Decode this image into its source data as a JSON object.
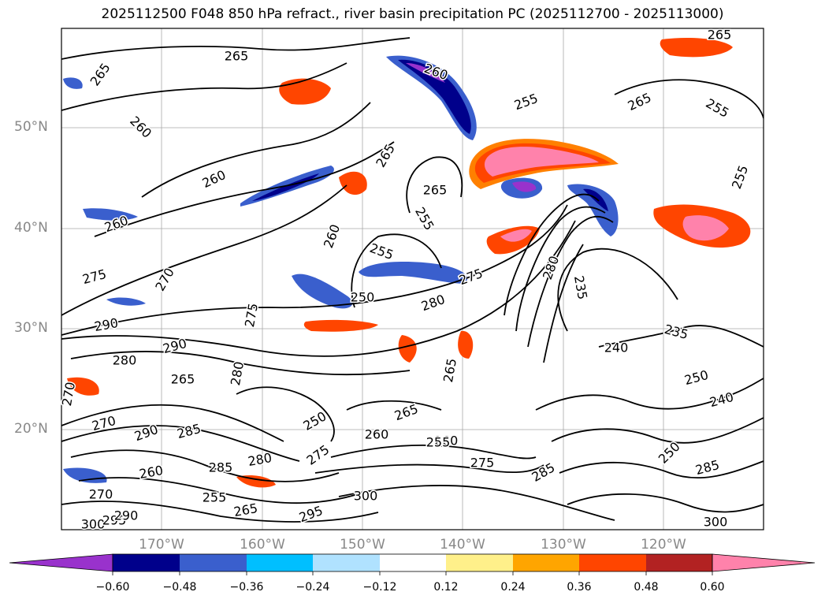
{
  "title": "2025112500 F048 850 hPa refract., river basin precipitation PC (2025112700 - 2025113000)",
  "lat_labels": [
    "50°N",
    "40°N",
    "30°N",
    "20°N"
  ],
  "lon_labels": [
    "170°W",
    "160°W",
    "150°W",
    "140°W",
    "130°W",
    "120°W"
  ],
  "contour_labels": [
    "265",
    "265",
    "265",
    "260",
    "255",
    "265",
    "260",
    "265",
    "255",
    "255",
    "260",
    "260",
    "260",
    "255",
    "255",
    "275",
    "270",
    "275",
    "250",
    "280",
    "275",
    "290",
    "280",
    "235",
    "240",
    "235",
    "250",
    "240",
    "265",
    "265",
    "285",
    "275",
    "280",
    "260",
    "260",
    "290",
    "285",
    "290",
    "280",
    "285",
    "275",
    "260",
    "265",
    "255",
    "265",
    "270",
    "300",
    "250",
    "255",
    "295",
    "285",
    "300",
    "300",
    "295",
    "290",
    "270",
    "280",
    "270",
    "250",
    "265"
  ],
  "colorbar": {
    "ticks": [
      "−0.60",
      "−0.48",
      "−0.36",
      "−0.24",
      "−0.12",
      "0.12",
      "0.24",
      "0.36",
      "0.48",
      "0.60"
    ],
    "colors": [
      "#9932cc",
      "#00008b",
      "#3a5fcd",
      "#00bfff",
      "#b0e2ff",
      "#ffffff",
      "#fff08a",
      "#ffa500",
      "#ff4500",
      "#b22222",
      "#ff82ab"
    ]
  }
}
